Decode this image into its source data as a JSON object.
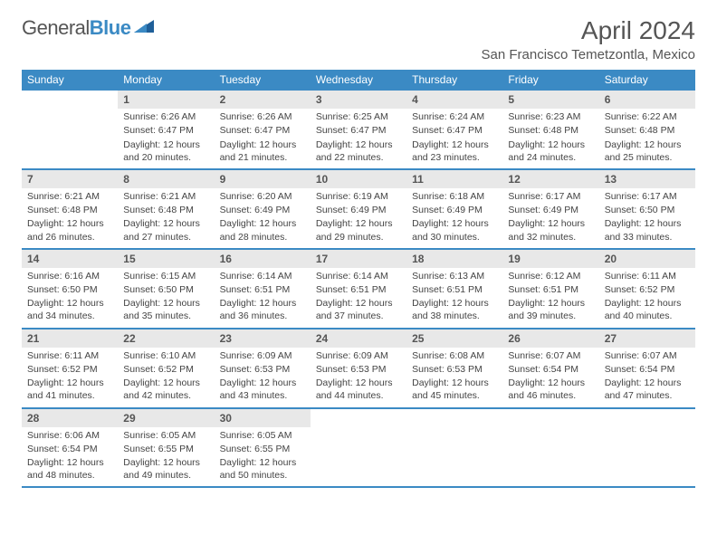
{
  "logo": {
    "text_gray": "General",
    "text_blue": "Blue"
  },
  "title": "April 2024",
  "location": "San Francisco Temetzontla, Mexico",
  "colors": {
    "accent": "#3b8ac4",
    "header_bg": "#3b8ac4",
    "header_text": "#ffffff",
    "daynum_bg": "#e8e8e8",
    "text": "#444444",
    "background": "#ffffff"
  },
  "weekdays": [
    "Sunday",
    "Monday",
    "Tuesday",
    "Wednesday",
    "Thursday",
    "Friday",
    "Saturday"
  ],
  "weeks": [
    [
      null,
      {
        "n": "1",
        "sunrise": "6:26 AM",
        "sunset": "6:47 PM",
        "daylight": "12 hours and 20 minutes."
      },
      {
        "n": "2",
        "sunrise": "6:26 AM",
        "sunset": "6:47 PM",
        "daylight": "12 hours and 21 minutes."
      },
      {
        "n": "3",
        "sunrise": "6:25 AM",
        "sunset": "6:47 PM",
        "daylight": "12 hours and 22 minutes."
      },
      {
        "n": "4",
        "sunrise": "6:24 AM",
        "sunset": "6:47 PM",
        "daylight": "12 hours and 23 minutes."
      },
      {
        "n": "5",
        "sunrise": "6:23 AM",
        "sunset": "6:48 PM",
        "daylight": "12 hours and 24 minutes."
      },
      {
        "n": "6",
        "sunrise": "6:22 AM",
        "sunset": "6:48 PM",
        "daylight": "12 hours and 25 minutes."
      }
    ],
    [
      {
        "n": "7",
        "sunrise": "6:21 AM",
        "sunset": "6:48 PM",
        "daylight": "12 hours and 26 minutes."
      },
      {
        "n": "8",
        "sunrise": "6:21 AM",
        "sunset": "6:48 PM",
        "daylight": "12 hours and 27 minutes."
      },
      {
        "n": "9",
        "sunrise": "6:20 AM",
        "sunset": "6:49 PM",
        "daylight": "12 hours and 28 minutes."
      },
      {
        "n": "10",
        "sunrise": "6:19 AM",
        "sunset": "6:49 PM",
        "daylight": "12 hours and 29 minutes."
      },
      {
        "n": "11",
        "sunrise": "6:18 AM",
        "sunset": "6:49 PM",
        "daylight": "12 hours and 30 minutes."
      },
      {
        "n": "12",
        "sunrise": "6:17 AM",
        "sunset": "6:49 PM",
        "daylight": "12 hours and 32 minutes."
      },
      {
        "n": "13",
        "sunrise": "6:17 AM",
        "sunset": "6:50 PM",
        "daylight": "12 hours and 33 minutes."
      }
    ],
    [
      {
        "n": "14",
        "sunrise": "6:16 AM",
        "sunset": "6:50 PM",
        "daylight": "12 hours and 34 minutes."
      },
      {
        "n": "15",
        "sunrise": "6:15 AM",
        "sunset": "6:50 PM",
        "daylight": "12 hours and 35 minutes."
      },
      {
        "n": "16",
        "sunrise": "6:14 AM",
        "sunset": "6:51 PM",
        "daylight": "12 hours and 36 minutes."
      },
      {
        "n": "17",
        "sunrise": "6:14 AM",
        "sunset": "6:51 PM",
        "daylight": "12 hours and 37 minutes."
      },
      {
        "n": "18",
        "sunrise": "6:13 AM",
        "sunset": "6:51 PM",
        "daylight": "12 hours and 38 minutes."
      },
      {
        "n": "19",
        "sunrise": "6:12 AM",
        "sunset": "6:51 PM",
        "daylight": "12 hours and 39 minutes."
      },
      {
        "n": "20",
        "sunrise": "6:11 AM",
        "sunset": "6:52 PM",
        "daylight": "12 hours and 40 minutes."
      }
    ],
    [
      {
        "n": "21",
        "sunrise": "6:11 AM",
        "sunset": "6:52 PM",
        "daylight": "12 hours and 41 minutes."
      },
      {
        "n": "22",
        "sunrise": "6:10 AM",
        "sunset": "6:52 PM",
        "daylight": "12 hours and 42 minutes."
      },
      {
        "n": "23",
        "sunrise": "6:09 AM",
        "sunset": "6:53 PM",
        "daylight": "12 hours and 43 minutes."
      },
      {
        "n": "24",
        "sunrise": "6:09 AM",
        "sunset": "6:53 PM",
        "daylight": "12 hours and 44 minutes."
      },
      {
        "n": "25",
        "sunrise": "6:08 AM",
        "sunset": "6:53 PM",
        "daylight": "12 hours and 45 minutes."
      },
      {
        "n": "26",
        "sunrise": "6:07 AM",
        "sunset": "6:54 PM",
        "daylight": "12 hours and 46 minutes."
      },
      {
        "n": "27",
        "sunrise": "6:07 AM",
        "sunset": "6:54 PM",
        "daylight": "12 hours and 47 minutes."
      }
    ],
    [
      {
        "n": "28",
        "sunrise": "6:06 AM",
        "sunset": "6:54 PM",
        "daylight": "12 hours and 48 minutes."
      },
      {
        "n": "29",
        "sunrise": "6:05 AM",
        "sunset": "6:55 PM",
        "daylight": "12 hours and 49 minutes."
      },
      {
        "n": "30",
        "sunrise": "6:05 AM",
        "sunset": "6:55 PM",
        "daylight": "12 hours and 50 minutes."
      },
      null,
      null,
      null,
      null
    ]
  ],
  "labels": {
    "sunrise": "Sunrise:",
    "sunset": "Sunset:",
    "daylight": "Daylight:"
  }
}
